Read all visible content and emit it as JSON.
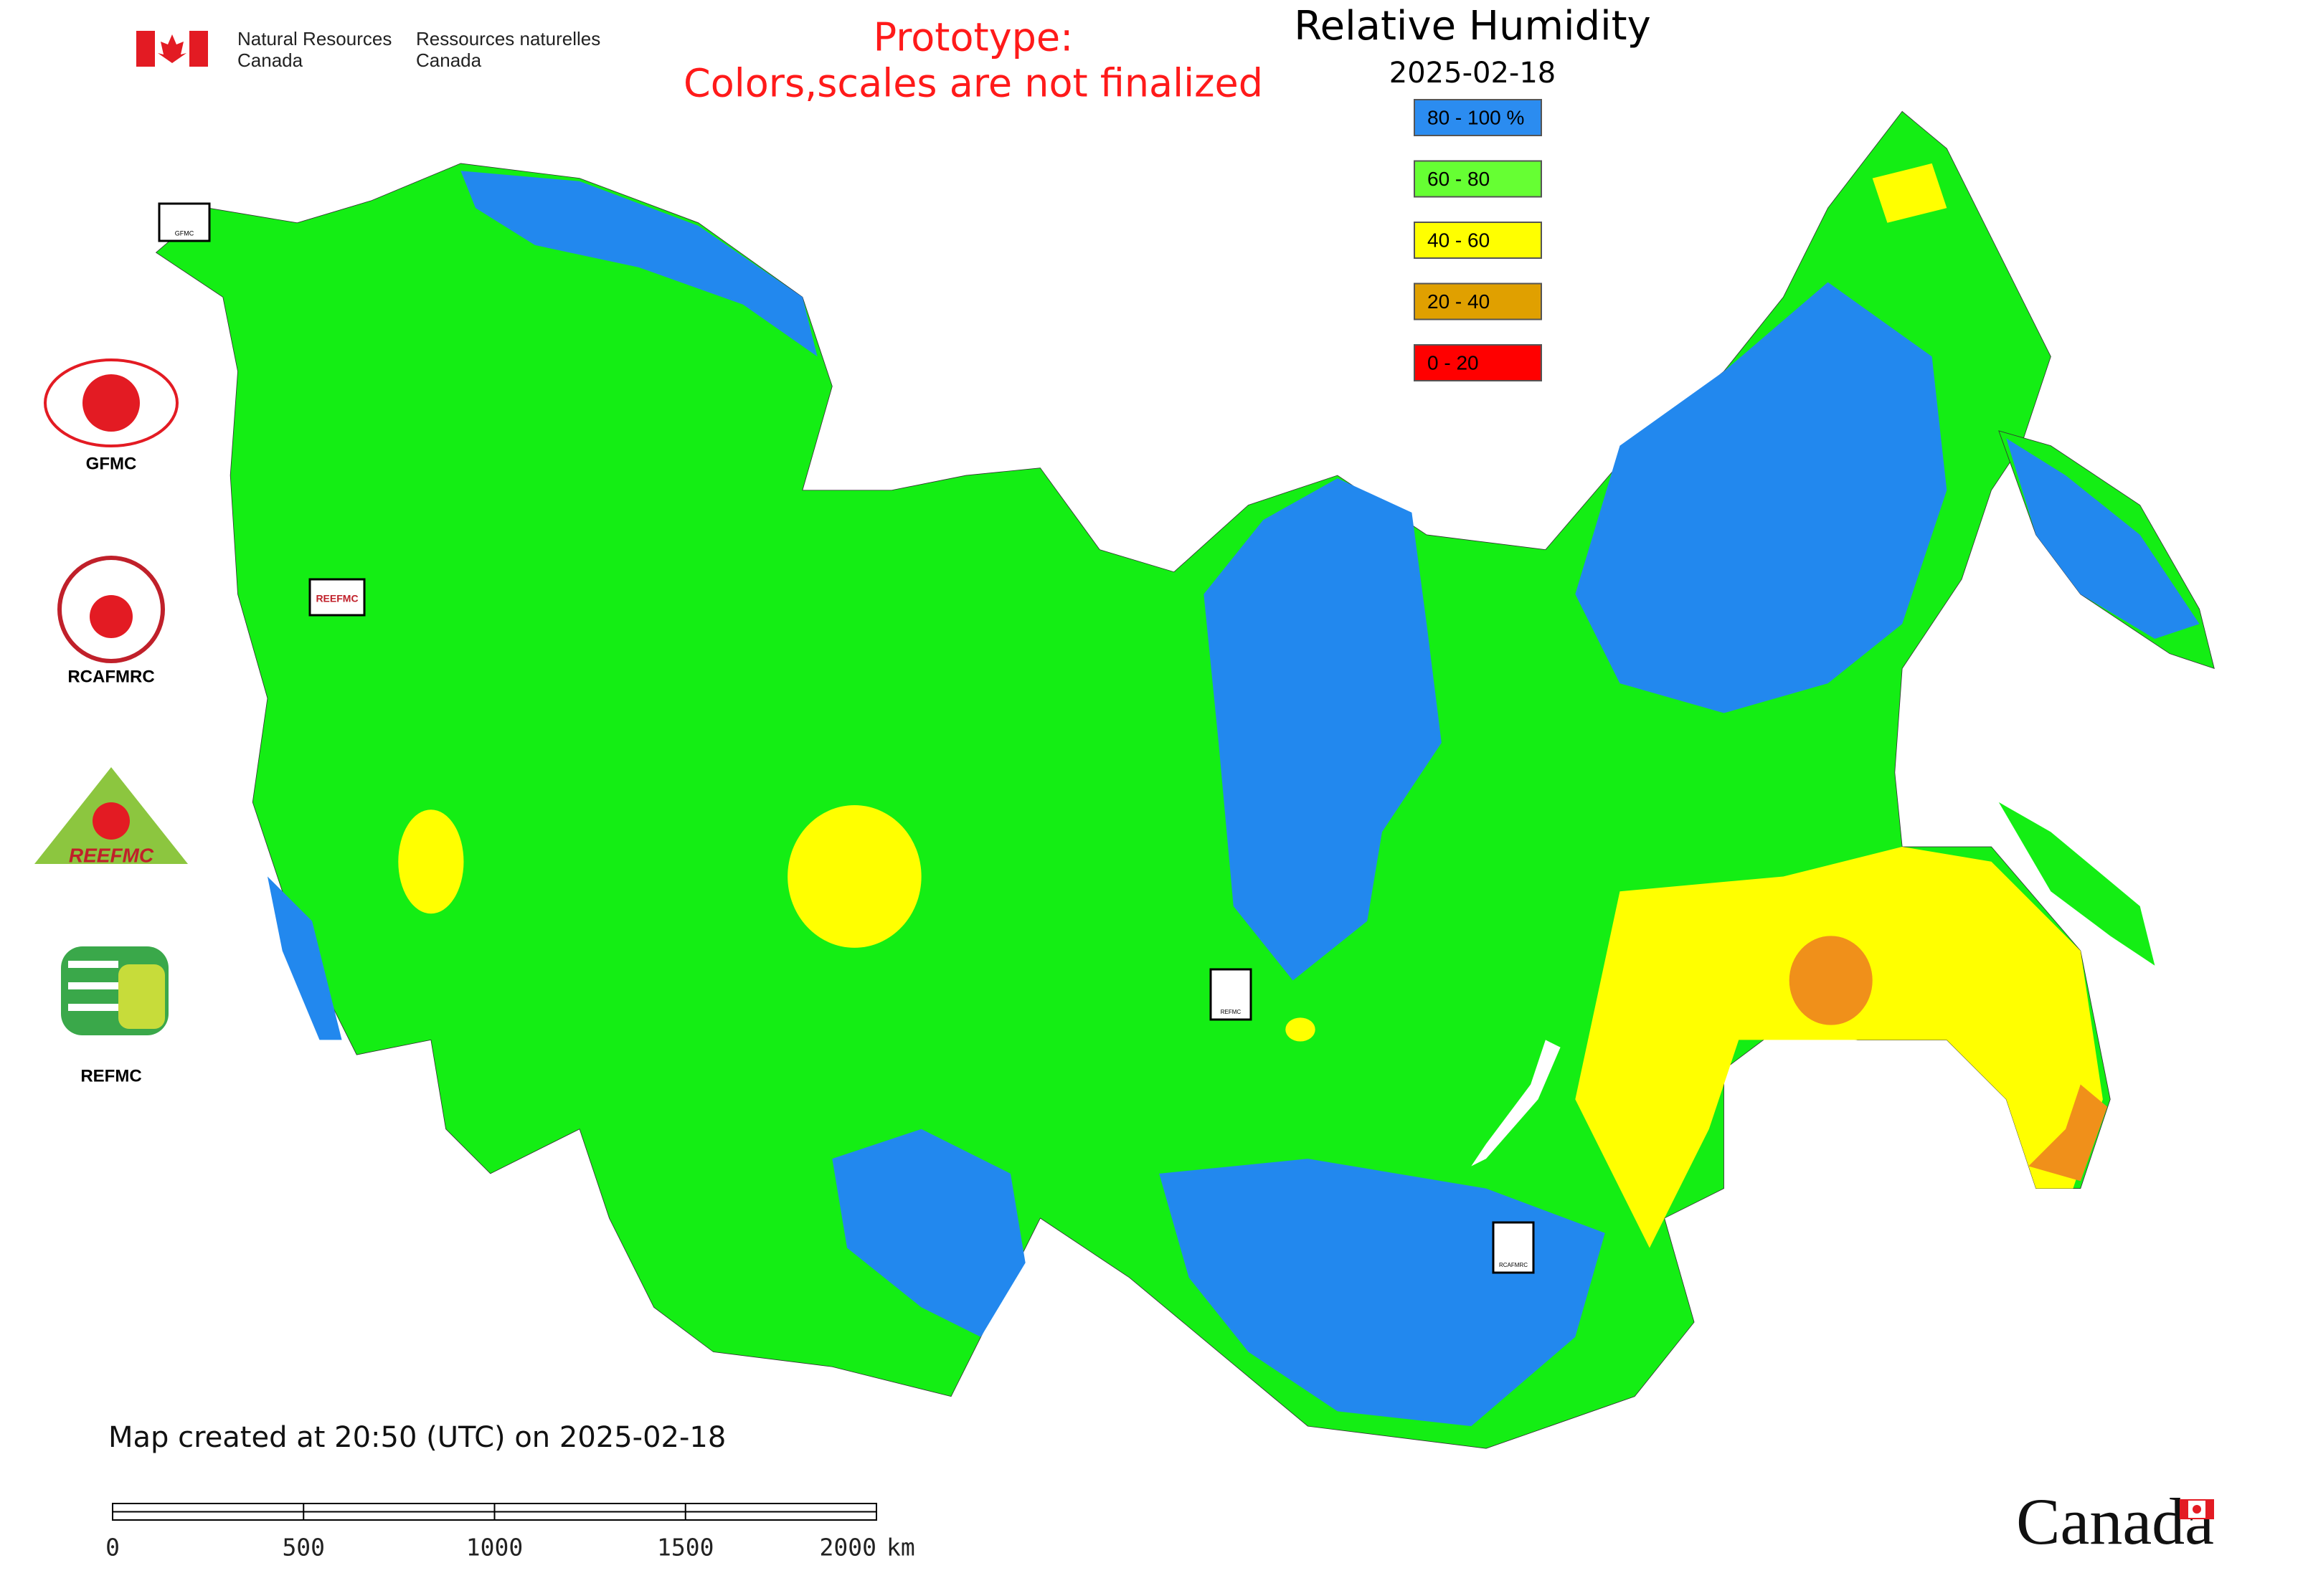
{
  "header": {
    "agency_en": [
      "Natural Resources",
      "Canada"
    ],
    "agency_fr": [
      "Ressources naturelles",
      "Canada"
    ],
    "notice": [
      "Prototype:",
      "Colors,scales are not finalized"
    ]
  },
  "map": {
    "title": "Relative Humidity",
    "date": "2025-02-18",
    "legend": [
      {
        "label": "80 - 100 %",
        "color": "#2b8cf0"
      },
      {
        "label": "60 - 80",
        "color": "#66ff33"
      },
      {
        "label": "40 - 60",
        "color": "#ffff00"
      },
      {
        "label": "20 - 40",
        "color": "#e0a000"
      },
      {
        "label": "0 - 20",
        "color": "#ff0000"
      }
    ],
    "markers": [
      "GFMC",
      "REEFMC",
      "REFMC",
      "RCAFMRC"
    ]
  },
  "logos": [
    "GFMC",
    "RCAFMRC",
    "REEFMC",
    "REFMC"
  ],
  "footer": {
    "created": "Map created at 20:50 (UTC) on 2025-02-18",
    "scale_bar": {
      "ticks": [
        0,
        500,
        1000,
        1500,
        2000
      ],
      "unit": "km"
    },
    "wordmark": "Canada"
  }
}
